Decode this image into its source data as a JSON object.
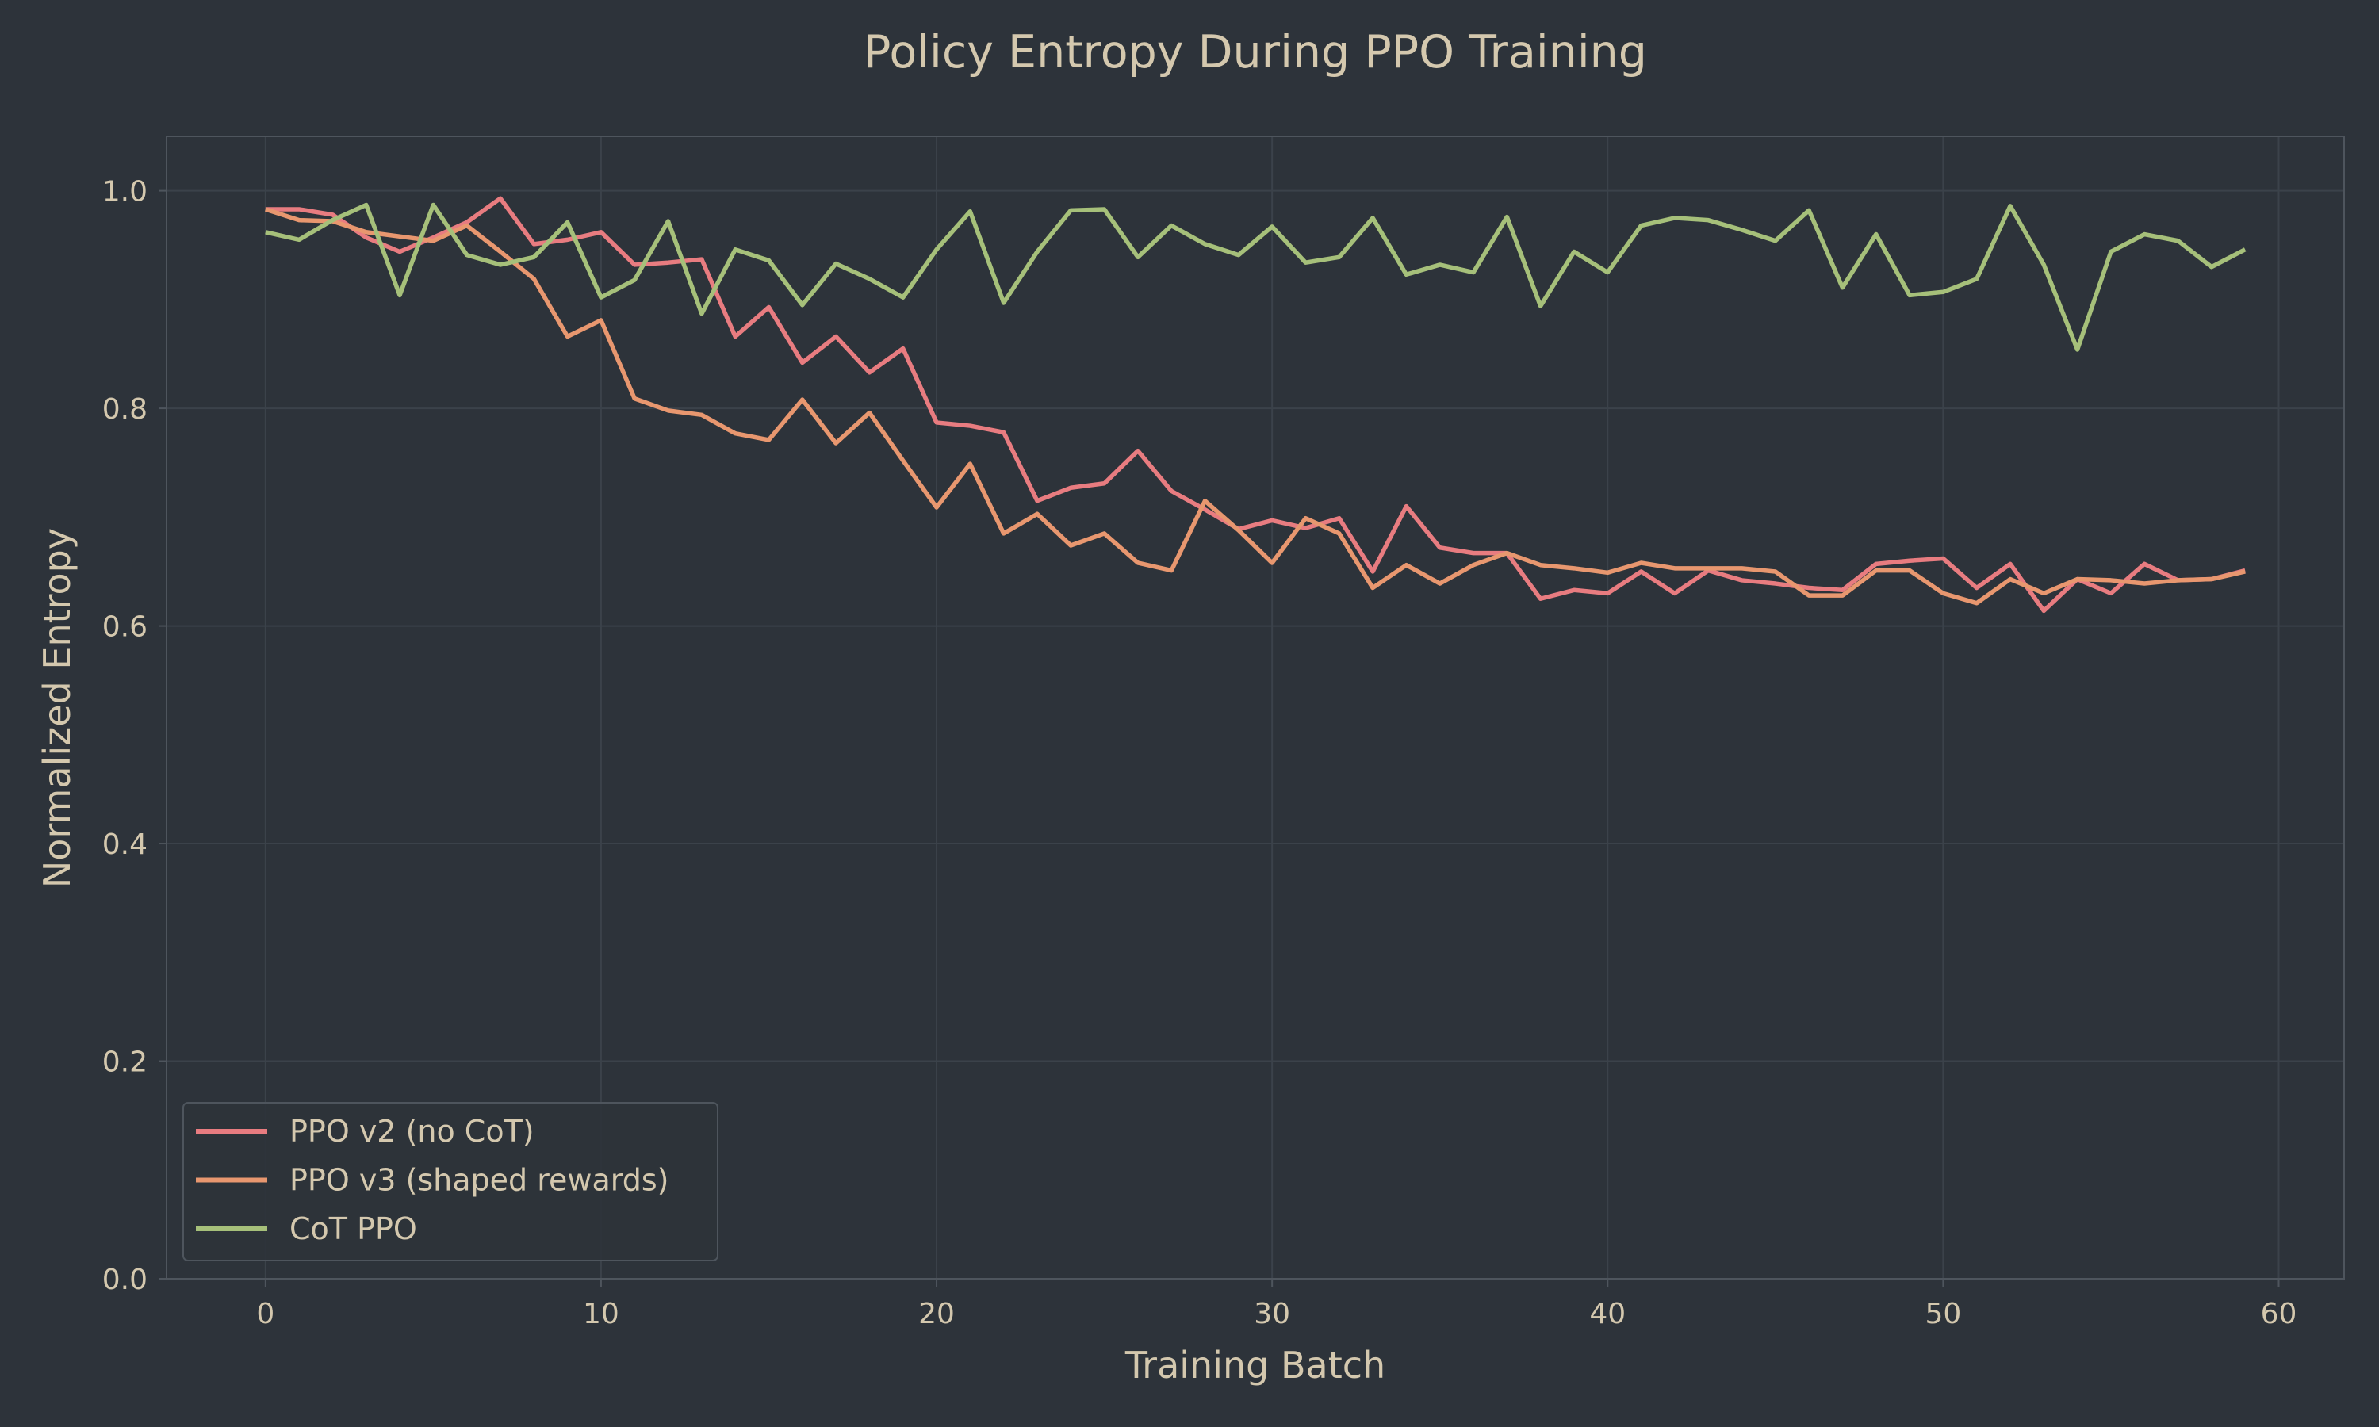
{
  "chart_data": {
    "type": "line",
    "title": "Policy Entropy During PPO Training",
    "xlabel": "Training Batch",
    "ylabel": "Normalized Entropy",
    "xlim": [
      -2.95,
      61.95
    ],
    "ylim": [
      0,
      1.05
    ],
    "xticks": [
      0,
      10,
      20,
      30,
      40,
      50,
      60
    ],
    "yticks": [
      0.0,
      0.2,
      0.4,
      0.6,
      0.8,
      1.0
    ],
    "ytick_labels": [
      "0.0",
      "0.2",
      "0.4",
      "0.6",
      "0.8",
      "1.0"
    ],
    "grid": true,
    "legend_position": "lower-left",
    "x": [
      0,
      1,
      2,
      3,
      4,
      5,
      6,
      7,
      8,
      9,
      10,
      11,
      12,
      13,
      14,
      15,
      16,
      17,
      18,
      19,
      20,
      21,
      22,
      23,
      24,
      25,
      26,
      27,
      28,
      29,
      30,
      31,
      32,
      33,
      34,
      35,
      36,
      37,
      38,
      39,
      40,
      41,
      42,
      43,
      44,
      45,
      46,
      47,
      48,
      49,
      50,
      51,
      52,
      53,
      54,
      55,
      56,
      57,
      58,
      59
    ],
    "series": [
      {
        "name": "PPO v2 (no CoT)",
        "color": "#e87c80",
        "values": [
          0.983,
          0.983,
          0.978,
          0.957,
          0.944,
          0.957,
          0.971,
          0.993,
          0.951,
          0.955,
          0.962,
          0.932,
          0.934,
          0.937,
          0.866,
          0.893,
          0.842,
          0.866,
          0.833,
          0.855,
          0.787,
          0.784,
          0.778,
          0.715,
          0.727,
          0.731,
          0.761,
          0.724,
          0.707,
          0.689,
          0.697,
          0.69,
          0.699,
          0.65,
          0.71,
          0.672,
          0.667,
          0.667,
          0.625,
          0.633,
          0.63,
          0.65,
          0.63,
          0.651,
          0.642,
          0.639,
          0.635,
          0.633,
          0.657,
          0.66,
          0.662,
          0.635,
          0.657,
          0.614,
          0.643,
          0.63,
          0.657,
          0.642,
          0.643,
          0.651
        ]
      },
      {
        "name": "PPO v3 (shaped rewards)",
        "color": "#e8976f",
        "values": [
          0.983,
          0.973,
          0.972,
          0.962,
          0.958,
          0.954,
          0.968,
          0.944,
          0.919,
          0.866,
          0.881,
          0.809,
          0.798,
          0.794,
          0.777,
          0.771,
          0.808,
          0.768,
          0.796,
          0.752,
          0.709,
          0.749,
          0.685,
          0.703,
          0.674,
          0.685,
          0.658,
          0.651,
          0.715,
          0.688,
          0.658,
          0.699,
          0.685,
          0.635,
          0.656,
          0.639,
          0.656,
          0.667,
          0.656,
          0.653,
          0.649,
          0.658,
          0.653,
          0.653,
          0.653,
          0.65,
          0.628,
          0.628,
          0.651,
          0.651,
          0.63,
          0.621,
          0.643,
          0.63,
          0.643,
          0.642,
          0.639,
          0.642,
          0.643,
          0.65
        ]
      },
      {
        "name": "CoT PPO",
        "color": "#a6c07a",
        "values": [
          0.962,
          0.955,
          0.973,
          0.987,
          0.904,
          0.987,
          0.941,
          0.932,
          0.939,
          0.971,
          0.902,
          0.918,
          0.972,
          0.887,
          0.946,
          0.936,
          0.895,
          0.933,
          0.919,
          0.902,
          0.946,
          0.981,
          0.897,
          0.944,
          0.982,
          0.983,
          0.939,
          0.968,
          0.951,
          0.941,
          0.967,
          0.934,
          0.939,
          0.975,
          0.923,
          0.932,
          0.925,
          0.976,
          0.894,
          0.944,
          0.925,
          0.968,
          0.975,
          0.973,
          0.964,
          0.954,
          0.982,
          0.911,
          0.96,
          0.904,
          0.907,
          0.919,
          0.986,
          0.932,
          0.854,
          0.944,
          0.96,
          0.954,
          0.93,
          0.946
        ]
      }
    ]
  },
  "colors": {
    "background": "#2d333a",
    "grid": "#3b424a",
    "spine": "#4e555d",
    "text": "#d4c8ae"
  }
}
